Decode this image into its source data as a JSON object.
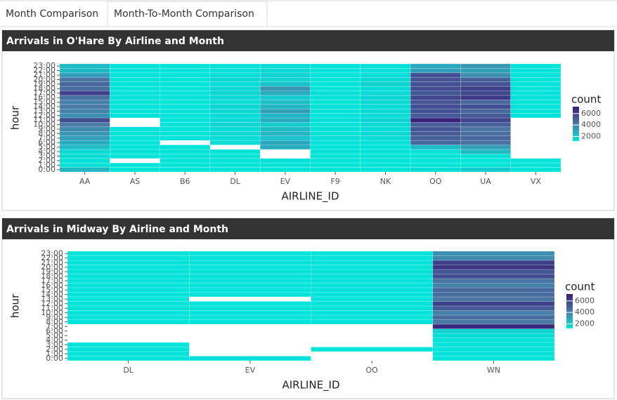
{
  "tabs": [
    "Month Comparison",
    "Month-To-Month Comparison"
  ],
  "chart_data": [
    {
      "type": "heatmap",
      "title": "Arrivals in O'Hare By Airline and Month",
      "x_label": "AIRLINE_ID",
      "y_label": "hour",
      "categories": [
        "AA",
        "AS",
        "B6",
        "DL",
        "EV",
        "F9",
        "NK",
        "OO",
        "UA",
        "VX"
      ],
      "y_categories": [
        "0:00",
        "1:00",
        "2:00",
        "3:00",
        "4:00",
        "5:00",
        "6:00",
        "7:00",
        "8:00",
        "9:00",
        "10:00",
        "11:00",
        "12:00",
        "13:00",
        "14:00",
        "15:00",
        "16:00",
        "17:00",
        "18:00",
        "19:00",
        "20:00",
        "21:00",
        "22:00",
        "23:00"
      ],
      "values": [
        [
          2600,
          1400,
          1400,
          1500,
          1600,
          2400,
          2800,
          3200,
          3500,
          3800,
          4200,
          5600,
          3600,
          3900,
          4200,
          4000,
          4500,
          6000,
          4600,
          4800,
          4400,
          3200,
          2500,
          2400
        ],
        [
          1300,
          1300,
          null,
          1300,
          1300,
          1300,
          1300,
          1300,
          1300,
          1300,
          null,
          null,
          1300,
          1300,
          1300,
          1300,
          1300,
          1300,
          1300,
          1300,
          1300,
          1300,
          1300,
          1300
        ],
        [
          1300,
          1300,
          1300,
          1300,
          1300,
          1300,
          null,
          1300,
          1300,
          1300,
          1300,
          1300,
          1300,
          1300,
          1300,
          1300,
          1300,
          1300,
          1300,
          1300,
          1300,
          1300,
          1300,
          1300
        ],
        [
          1300,
          1300,
          1300,
          1300,
          1300,
          null,
          1500,
          1500,
          1600,
          1500,
          1700,
          1600,
          1500,
          1600,
          1700,
          1500,
          1600,
          1700,
          1600,
          1500,
          1600,
          1500,
          1400,
          1400
        ],
        [
          1300,
          1300,
          1400,
          null,
          null,
          2800,
          3000,
          2200,
          2600,
          2400,
          2000,
          2800,
          2500,
          3200,
          2600,
          2400,
          2000,
          2800,
          3500,
          2200,
          1800,
          1800,
          1600,
          1500
        ],
        [
          1300,
          1300,
          1300,
          1300,
          1300,
          1300,
          1300,
          1400,
          1300,
          1400,
          1300,
          1400,
          1300,
          1300,
          1400,
          1300,
          1300,
          1400,
          1300,
          1300,
          1300,
          1300,
          1300,
          1300
        ],
        [
          1300,
          1300,
          1300,
          1300,
          1300,
          1300,
          1400,
          1500,
          1600,
          1500,
          1600,
          1700,
          1500,
          1600,
          1500,
          1600,
          1700,
          1600,
          1500,
          1800,
          1600,
          1500,
          1400,
          1400
        ],
        [
          1500,
          1300,
          1300,
          1300,
          1400,
          2400,
          4800,
          5000,
          5200,
          5400,
          5000,
          7000,
          5200,
          5500,
          5600,
          5400,
          5800,
          5300,
          5600,
          5500,
          5400,
          5600,
          3200,
          3000
        ],
        [
          2000,
          1300,
          1300,
          1300,
          2500,
          3200,
          4500,
          4800,
          4600,
          4400,
          5000,
          5800,
          5200,
          4800,
          5600,
          4800,
          6200,
          5800,
          6000,
          5400,
          5000,
          3600,
          3200,
          3400
        ],
        [
          1300,
          1300,
          1300,
          null,
          null,
          null,
          null,
          null,
          null,
          null,
          null,
          null,
          1300,
          1300,
          1300,
          1300,
          1300,
          1300,
          1300,
          1300,
          1300,
          1300,
          1300,
          1300
        ]
      ],
      "colors": [
        "#00e8dc",
        "#4a7aa6",
        "#3a1a78"
      ],
      "colorbar": {
        "title": "count",
        "lim": [
          1200,
          7200
        ],
        "ticks": [
          2000,
          4000,
          6000
        ]
      }
    },
    {
      "type": "heatmap",
      "title": "Arrivals in Midway By Airline and Month",
      "x_label": "AIRLINE_ID",
      "y_label": "hour",
      "categories": [
        "DL",
        "EV",
        "OO",
        "WN"
      ],
      "y_categories": [
        "0:00",
        "1:00",
        "2:00",
        "3:00",
        "4:00",
        "5:00",
        "6:00",
        "7:00",
        "8:00",
        "9:00",
        "10:00",
        "11:00",
        "12:00",
        "13:00",
        "14:00",
        "15:00",
        "16:00",
        "17:00",
        "18:00",
        "19:00",
        "20:00",
        "21:00",
        "22:00",
        "23:00"
      ],
      "values": [
        [
          1300,
          1300,
          1300,
          1300,
          null,
          null,
          null,
          null,
          1300,
          1300,
          1300,
          1300,
          1300,
          1300,
          1300,
          1300,
          1300,
          1300,
          1300,
          1300,
          1300,
          1300,
          1300,
          1300
        ],
        [
          1300,
          null,
          null,
          null,
          null,
          null,
          null,
          null,
          1300,
          1300,
          1300,
          1300,
          1300,
          null,
          1300,
          1300,
          1300,
          1300,
          1300,
          1300,
          1300,
          1300,
          1300,
          1300
        ],
        [
          null,
          null,
          1300,
          null,
          null,
          null,
          null,
          null,
          1300,
          1300,
          1300,
          1300,
          1300,
          1300,
          1300,
          1300,
          1300,
          1300,
          1300,
          1300,
          1300,
          1300,
          1300,
          1300
        ],
        [
          1300,
          1300,
          1300,
          1300,
          1400,
          1500,
          1800,
          6800,
          4200,
          4600,
          4000,
          5200,
          6000,
          4400,
          4600,
          4800,
          4000,
          4400,
          5600,
          5400,
          6400,
          6000,
          3800,
          3600
        ]
      ],
      "colors": [
        "#00e8dc",
        "#4a7aa6",
        "#3a1a78"
      ],
      "colorbar": {
        "title": "count",
        "lim": [
          1200,
          7200
        ],
        "ticks": [
          2000,
          4000,
          6000
        ]
      }
    }
  ]
}
